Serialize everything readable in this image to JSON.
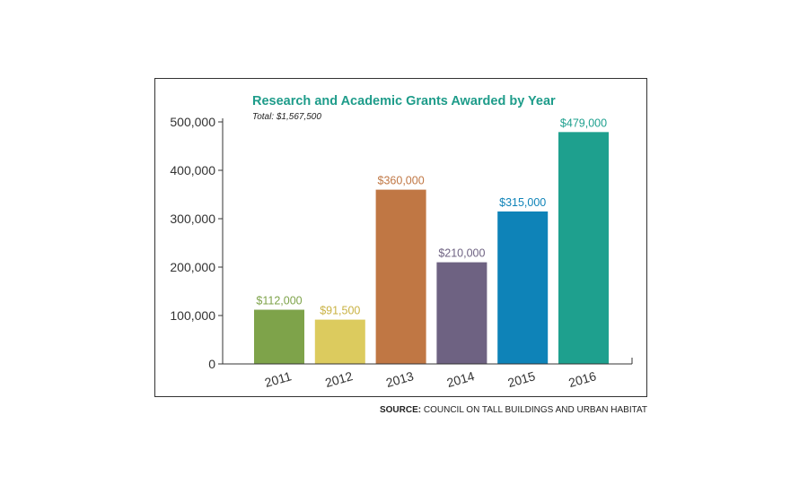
{
  "chart_data": {
    "type": "bar",
    "title": "Research and Academic Grants Awarded by Year",
    "subtitle": "Total: $1,567,500",
    "categories": [
      "2011",
      "2012",
      "2013",
      "2014",
      "2015",
      "2016"
    ],
    "values": [
      112000,
      91500,
      360000,
      210000,
      315000,
      479000
    ],
    "value_labels": [
      "$112,000",
      "$91,500",
      "$360,000",
      "$210,000",
      "$315,000",
      "$479,000"
    ],
    "bar_colors": [
      "#7ea34a",
      "#dccb5e",
      "#c07744",
      "#6e6282",
      "#0e83b8",
      "#1ea08e"
    ],
    "label_colors": [
      "#7ea34a",
      "#c9b243",
      "#c07744",
      "#6e6282",
      "#0e83b8",
      "#1ea08e"
    ],
    "yticks": [
      "0",
      "100,000",
      "200,000",
      "300,000",
      "400,000",
      "500,000"
    ],
    "ylim": [
      0,
      500000
    ],
    "xlabel": "",
    "ylabel": "",
    "grid": false,
    "title_color": "#1e9c8a"
  },
  "source": {
    "prefix": "SOURCE:",
    "text": "COUNCIL ON TALL BUILDINGS AND URBAN HABITAT"
  }
}
